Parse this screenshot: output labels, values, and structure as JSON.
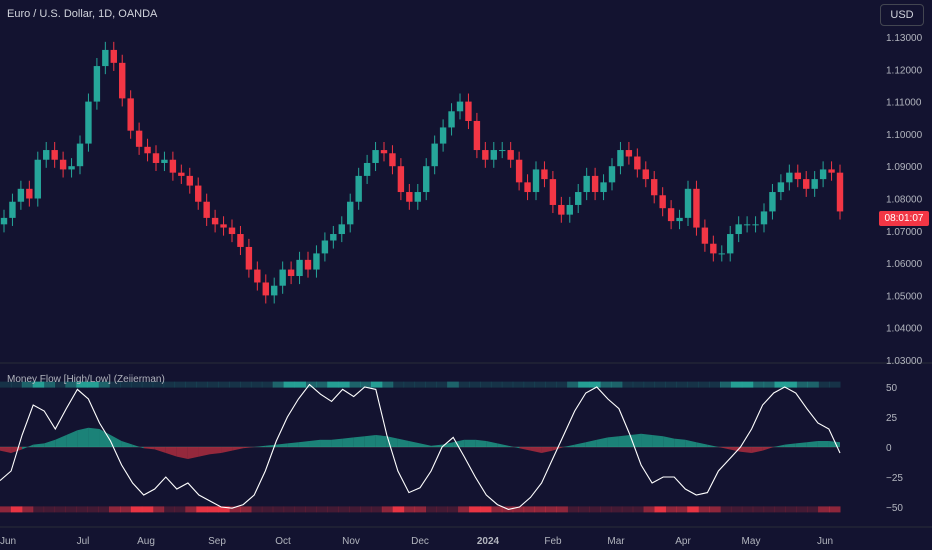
{
  "header": {
    "symbol_title": "Euro / U.S. Dollar, 1D, OANDA",
    "currency": "USD"
  },
  "price_axis": {
    "ticks": [
      "1.13000",
      "1.12000",
      "1.11000",
      "1.10000",
      "1.09000",
      "1.08000",
      "1.07000",
      "1.06000",
      "1.05000",
      "1.04000",
      "1.03000"
    ],
    "countdown": "08:01:07"
  },
  "indicator": {
    "title": "Money Flow [High/Low] (Zeiierman)",
    "ticks": [
      "50",
      "25",
      "0",
      "−25",
      "−50"
    ]
  },
  "time_axis": {
    "labels": [
      "Jun",
      "Jul",
      "Aug",
      "Sep",
      "Oct",
      "Nov",
      "Dec",
      "2024",
      "Feb",
      "Mar",
      "Apr",
      "May",
      "Jun"
    ]
  },
  "colors": {
    "background": "#131330",
    "bull": "#26a69a",
    "bear": "#f23645",
    "teal_fill": "#1fa890",
    "red_fill": "#c03040",
    "line": "#ffffff",
    "axis_text": "#b2b5be",
    "grid": "#2a2e39"
  },
  "chart_data": {
    "type": "candlestick",
    "price_range": [
      1.03,
      1.135
    ],
    "price_series_close": [
      1.074,
      1.079,
      1.083,
      1.08,
      1.092,
      1.095,
      1.092,
      1.089,
      1.09,
      1.097,
      1.11,
      1.121,
      1.126,
      1.122,
      1.111,
      1.101,
      1.096,
      1.094,
      1.091,
      1.092,
      1.088,
      1.087,
      1.084,
      1.079,
      1.074,
      1.072,
      1.071,
      1.069,
      1.065,
      1.058,
      1.054,
      1.05,
      1.053,
      1.058,
      1.056,
      1.061,
      1.058,
      1.063,
      1.067,
      1.069,
      1.072,
      1.079,
      1.087,
      1.091,
      1.095,
      1.094,
      1.09,
      1.082,
      1.079,
      1.082,
      1.09,
      1.097,
      1.102,
      1.107,
      1.11,
      1.104,
      1.095,
      1.092,
      1.095,
      1.095,
      1.092,
      1.085,
      1.082,
      1.089,
      1.086,
      1.078,
      1.075,
      1.078,
      1.082,
      1.087,
      1.082,
      1.085,
      1.09,
      1.095,
      1.093,
      1.089,
      1.086,
      1.081,
      1.077,
      1.073,
      1.074,
      1.083,
      1.071,
      1.066,
      1.063,
      1.063,
      1.069,
      1.072,
      1.072,
      1.072,
      1.076,
      1.082,
      1.085,
      1.088,
      1.086,
      1.083,
      1.086,
      1.089,
      1.088,
      1.076
    ],
    "indicator_range": [
      -55,
      55
    ],
    "money_flow_line": [
      -28,
      -20,
      10,
      35,
      30,
      15,
      32,
      48,
      40,
      20,
      5,
      -15,
      -30,
      -40,
      -35,
      -25,
      -35,
      -30,
      -40,
      -45,
      -50,
      -51,
      -48,
      -40,
      -20,
      5,
      25,
      40,
      52,
      44,
      38,
      48,
      42,
      50,
      48,
      10,
      -20,
      -38,
      -34,
      -20,
      0,
      8,
      -8,
      -25,
      -40,
      -48,
      -52,
      -50,
      -42,
      -30,
      -10,
      10,
      30,
      45,
      50,
      40,
      32,
      10,
      -15,
      -30,
      -25,
      -25,
      -35,
      -40,
      -38,
      -20,
      -10,
      0,
      15,
      35,
      45,
      50,
      45,
      32,
      20,
      15,
      -5
    ],
    "money_flow_fill": [
      -3,
      -5,
      -2,
      2,
      3,
      6,
      10,
      14,
      16,
      15,
      10,
      5,
      2,
      -1,
      -2,
      -5,
      -8,
      -10,
      -8,
      -6,
      -5,
      -3,
      -1,
      0,
      1,
      2,
      3,
      4,
      5,
      6,
      6,
      7,
      8,
      9,
      10,
      9,
      7,
      5,
      3,
      1,
      2,
      4,
      6,
      6,
      5,
      3,
      1,
      -1,
      -3,
      -5,
      -3,
      0,
      2,
      4,
      6,
      8,
      9,
      10,
      11,
      10,
      9,
      7,
      6,
      4,
      2,
      0,
      -2,
      -4,
      -5,
      -3,
      0,
      2,
      3,
      4,
      5,
      5,
      4
    ],
    "strength_bar_top": [
      "dim",
      "dim",
      "mid",
      "high",
      "mid",
      "dim",
      "mid",
      "high",
      "high",
      "mid",
      "dim",
      "dim",
      "dim",
      "dim",
      "dim",
      "dim",
      "dim",
      "dim",
      "dim",
      "dim",
      "dim",
      "dim",
      "dim",
      "dim",
      "dim",
      "mid",
      "high",
      "high",
      "mid",
      "mid",
      "high",
      "high",
      "mid",
      "mid",
      "high",
      "mid",
      "dim",
      "dim",
      "dim",
      "dim",
      "dim",
      "mid",
      "dim",
      "dim",
      "dim",
      "dim",
      "dim",
      "dim",
      "dim",
      "dim",
      "dim",
      "dim",
      "mid",
      "high",
      "high",
      "mid",
      "mid",
      "dim",
      "dim",
      "dim",
      "dim",
      "dim",
      "dim",
      "dim",
      "dim",
      "dim",
      "mid",
      "high",
      "high",
      "mid",
      "mid",
      "high",
      "high",
      "mid",
      "mid",
      "dim",
      "dim"
    ],
    "strength_bar_bottom": [
      "mid",
      "high",
      "mid",
      "dim",
      "dim",
      "dim",
      "dim",
      "dim",
      "dim",
      "dim",
      "mid",
      "mid",
      "high",
      "high",
      "mid",
      "dim",
      "dim",
      "mid",
      "high",
      "high",
      "high",
      "mid",
      "mid",
      "dim",
      "dim",
      "dim",
      "dim",
      "dim",
      "dim",
      "dim",
      "dim",
      "dim",
      "dim",
      "dim",
      "dim",
      "mid",
      "high",
      "mid",
      "mid",
      "dim",
      "dim",
      "dim",
      "mid",
      "high",
      "high",
      "mid",
      "mid",
      "mid",
      "mid",
      "mid",
      "mid",
      "mid",
      "dim",
      "dim",
      "dim",
      "dim",
      "dim",
      "dim",
      "dim",
      "mid",
      "high",
      "mid",
      "mid",
      "high",
      "mid",
      "mid",
      "dim",
      "dim",
      "dim",
      "dim",
      "dim",
      "dim",
      "dim",
      "dim",
      "dim",
      "mid",
      "mid"
    ]
  }
}
